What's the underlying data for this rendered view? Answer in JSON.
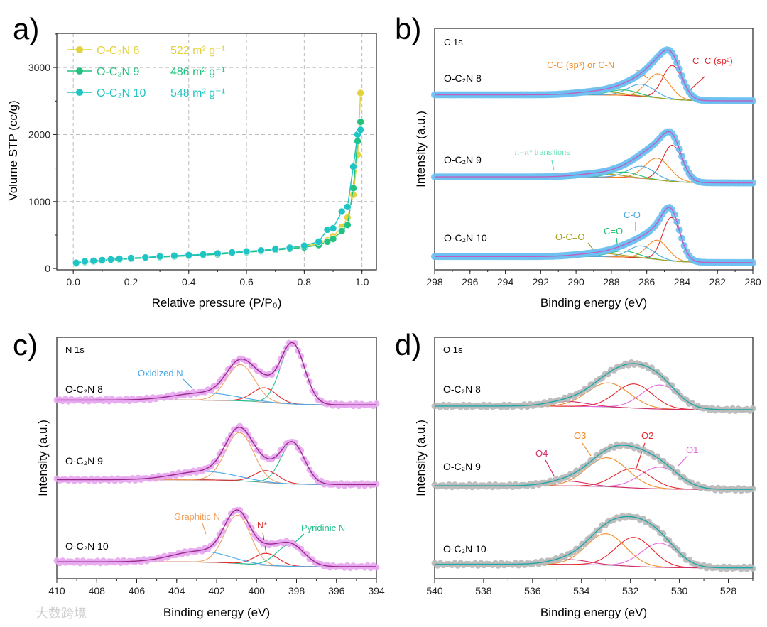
{
  "watermark": "大数跨境",
  "chart_data": [
    {
      "panel_label": "a)",
      "type": "line",
      "title": "",
      "xlabel": "Relative pressure  (P/P₀)",
      "ylabel": "Volume STP  (cc/g)",
      "xlim": [
        0,
        1.0
      ],
      "ylim": [
        0,
        3500
      ],
      "xticks": [
        "0.0",
        "0.2",
        "0.4",
        "0.6",
        "0.8",
        "1.0"
      ],
      "yticks": [
        "0",
        "1000",
        "2000",
        "3000"
      ],
      "grid": true,
      "legend_position": "top-left",
      "x": [
        0.01,
        0.04,
        0.07,
        0.1,
        0.13,
        0.16,
        0.2,
        0.25,
        0.3,
        0.35,
        0.4,
        0.45,
        0.5,
        0.55,
        0.6,
        0.65,
        0.7,
        0.75,
        0.8,
        0.85,
        0.88,
        0.9,
        0.93,
        0.95,
        0.97,
        0.985,
        0.995
      ],
      "series": [
        {
          "name": "O-C₂N 8",
          "area": "522 m² g⁻¹",
          "color": "#e3d23a",
          "values": [
            80,
            100,
            110,
            120,
            130,
            140,
            150,
            160,
            175,
            185,
            195,
            205,
            220,
            235,
            250,
            265,
            285,
            305,
            330,
            370,
            420,
            480,
            620,
            760,
            1100,
            1700,
            2620
          ]
        },
        {
          "name": "O-C₂N 9",
          "area": "486 m² g⁻¹",
          "color": "#22c27e",
          "values": [
            75,
            95,
            105,
            115,
            125,
            135,
            145,
            158,
            170,
            180,
            190,
            200,
            212,
            228,
            243,
            258,
            275,
            295,
            315,
            350,
            400,
            440,
            560,
            650,
            1200,
            1900,
            2190
          ]
        },
        {
          "name": "O-C₂N 10",
          "area": "548 m² g⁻¹",
          "color": "#1fc4c4",
          "values": [
            85,
            105,
            115,
            125,
            135,
            145,
            155,
            165,
            180,
            190,
            200,
            210,
            225,
            240,
            255,
            270,
            290,
            310,
            340,
            400,
            580,
            600,
            850,
            920,
            1520,
            2000,
            2070
          ]
        }
      ]
    },
    {
      "panel_label": "b)",
      "type": "line",
      "title": "C 1s",
      "xlabel": "Binding energy (eV)",
      "ylabel": "Intensity (a.u.)",
      "xlim": [
        298,
        280
      ],
      "ylim": [
        0,
        100
      ],
      "xticks": [
        "298",
        "296",
        "294",
        "292",
        "290",
        "288",
        "286",
        "284",
        "282",
        "280"
      ],
      "marker_color": "#6cc0f2",
      "fit_color": "#c060c0",
      "components": [
        {
          "name": "C=C (sp²)",
          "color": "#e3262a"
        },
        {
          "name": "C-C (sp³) or C-N",
          "color": "#f08c28"
        },
        {
          "name": "C-O",
          "color": "#4aa8e6"
        },
        {
          "name": "C=O",
          "color": "#22c070"
        },
        {
          "name": "O-C=O",
          "color": "#a8a020"
        }
      ],
      "annotations": [
        "C-C (sp³) or C-N",
        "C=C (sp²)",
        "π–π* transitions",
        "O-C=O",
        "C=O",
        "C-O"
      ],
      "samples": [
        {
          "name": "O-C₂N 8",
          "offset": 70,
          "step": 2.5,
          "peaks": [
            [
              284.55,
              14,
              0.55
            ],
            [
              285.35,
              10,
              0.65
            ],
            [
              286.3,
              5,
              0.75
            ],
            [
              287.3,
              2.2,
              0.8
            ],
            [
              288.7,
              1.4,
              1.2
            ]
          ]
        },
        {
          "name": "O-C₂N 9",
          "offset": 36,
          "step": 2.5,
          "peaks": [
            [
              284.55,
              15,
              0.55
            ],
            [
              285.4,
              9,
              0.7
            ],
            [
              286.3,
              5,
              0.75
            ],
            [
              287.3,
              2.2,
              0.8
            ],
            [
              288.7,
              1.4,
              1.2
            ]
          ]
        },
        {
          "name": "O-C₂N 10",
          "offset": 3,
          "step": 2.5,
          "peaks": [
            [
              284.6,
              18,
              0.5
            ],
            [
              285.4,
              8,
              0.6
            ],
            [
              286.3,
              5,
              0.7
            ],
            [
              287.3,
              2.5,
              0.8
            ],
            [
              288.7,
              1.4,
              1.2
            ]
          ]
        }
      ]
    },
    {
      "panel_label": "c)",
      "type": "line",
      "title": "N 1s",
      "xlabel": "Binding energy (eV)",
      "ylabel": "Intensity (a.u.)",
      "xlim": [
        410,
        394
      ],
      "ylim": [
        0,
        100
      ],
      "xticks": [
        "410",
        "408",
        "406",
        "404",
        "402",
        "400",
        "398",
        "396",
        "394"
      ],
      "marker_color": "#e7a6f0",
      "fit_color": "#9a2a8a",
      "components": [
        {
          "name": "Pyridinic N",
          "color": "#22c08a"
        },
        {
          "name": "N*",
          "color": "#e3262a"
        },
        {
          "name": "Graphitic N",
          "color": "#f0a060"
        },
        {
          "name": "Oxidized N",
          "color": "#4aa8e6"
        }
      ],
      "annotations": [
        "Oxidized N",
        "Graphitic N",
        "N*",
        "Pyridinic N"
      ],
      "samples": [
        {
          "name": "O-C₂N 8",
          "offset": 72,
          "step": 2,
          "peaks": [
            [
              398.2,
              25,
              0.6
            ],
            [
              399.6,
              6,
              0.6
            ],
            [
              400.8,
              15,
              0.7
            ],
            [
              402.6,
              3,
              1.5
            ]
          ]
        },
        {
          "name": "O-C₂N 9",
          "offset": 39,
          "step": 2,
          "peaks": [
            [
              398.2,
              17,
              0.6
            ],
            [
              399.5,
              5,
              0.6
            ],
            [
              400.85,
              20,
              0.7
            ],
            [
              402.6,
              3.5,
              1.5
            ]
          ]
        },
        {
          "name": "O-C₂N 10",
          "offset": 5,
          "step": 2,
          "peaks": [
            [
              398.3,
              9,
              0.7
            ],
            [
              399.5,
              5,
              0.6
            ],
            [
              400.95,
              20,
              0.65
            ],
            [
              402.8,
              4.5,
              1.4
            ]
          ]
        }
      ]
    },
    {
      "panel_label": "d)",
      "type": "line",
      "title": "O 1s",
      "xlabel": "Binding energy (eV)",
      "ylabel": "Intensity (a.u.)",
      "xlim": [
        540,
        527
      ],
      "ylim": [
        0,
        100
      ],
      "xticks": [
        "540",
        "538",
        "536",
        "534",
        "532",
        "530",
        "528"
      ],
      "marker_color": "#b8b8b8",
      "fit_color": "#1fa8a8",
      "components": [
        {
          "name": "O1",
          "color": "#e466e0"
        },
        {
          "name": "O2",
          "color": "#e3262a"
        },
        {
          "name": "O3",
          "color": "#f08c28"
        },
        {
          "name": "O4",
          "color": "#d42a6a"
        }
      ],
      "annotations": [
        "O4",
        "O3",
        "O2",
        "O1"
      ],
      "samples": [
        {
          "name": "O-C₂N 8",
          "offset": 70,
          "step": 1.5,
          "peaks": [
            [
              530.8,
              10,
              0.75
            ],
            [
              531.85,
              10,
              0.75
            ],
            [
              532.9,
              10,
              0.85
            ],
            [
              534.6,
              2,
              0.8
            ]
          ]
        },
        {
          "name": "O-C₂N 9",
          "offset": 37,
          "step": 1.5,
          "peaks": [
            [
              530.8,
              9,
              0.8
            ],
            [
              531.9,
              8,
              0.75
            ],
            [
              532.95,
              12,
              0.85
            ],
            [
              534.6,
              2,
              0.8
            ]
          ]
        },
        {
          "name": "O-C₂N 10",
          "offset": 4.5,
          "step": 1.5,
          "peaks": [
            [
              530.8,
              10,
              0.75
            ],
            [
              531.85,
              12,
              0.75
            ],
            [
              533.0,
              13,
              0.8
            ],
            [
              534.5,
              2,
              0.8
            ]
          ]
        }
      ]
    }
  ]
}
